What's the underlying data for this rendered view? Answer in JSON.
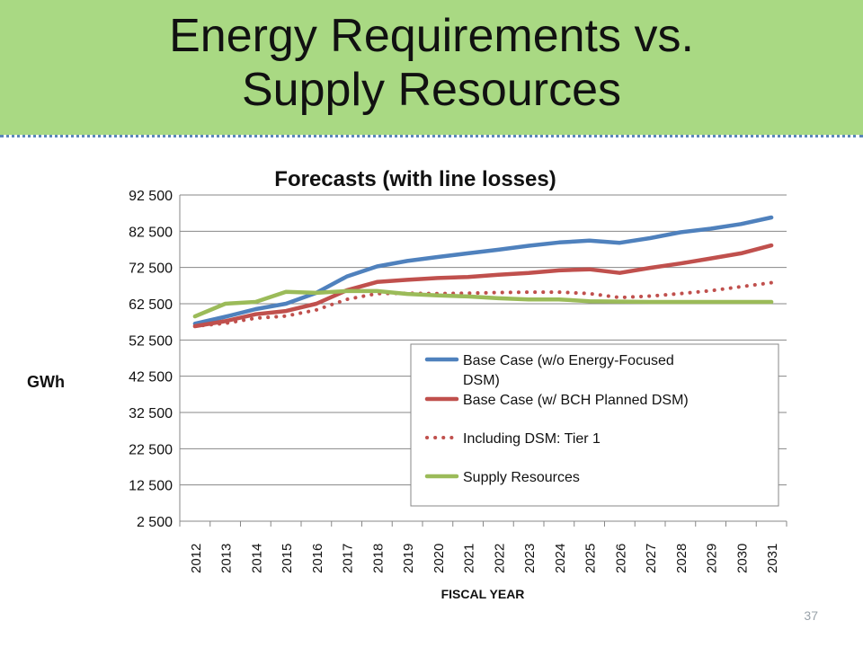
{
  "slide": {
    "title_line1": "Energy Requirements vs.",
    "title_line2": "Supply Resources",
    "page_number": "37",
    "band_color": "#a9d983"
  },
  "chart_data": {
    "type": "line",
    "title": "Forecasts (with line losses)",
    "xlabel": "FISCAL YEAR",
    "ylabel": "GWh",
    "x": [
      "2012",
      "2013",
      "2014",
      "2015",
      "2016",
      "2017",
      "2018",
      "2019",
      "2020",
      "2021",
      "2022",
      "2023",
      "2024",
      "2025",
      "2026",
      "2027",
      "2028",
      "2029",
      "2030",
      "2031"
    ],
    "ylim": [
      2500,
      92500
    ],
    "yticks": [
      2500,
      12500,
      22500,
      32500,
      42500,
      52500,
      62500,
      72500,
      82500,
      92500
    ],
    "ytick_labels": [
      "2 500",
      "12 500",
      "22 500",
      "32 500",
      "42 500",
      "52 500",
      "62 500",
      "72 500",
      "82 500",
      "92 500"
    ],
    "grid": "horizontal",
    "legend_position": "lower-right",
    "series": [
      {
        "name": "Base Case (w/o Energy-Focused DSM)",
        "color": "#4f81bd",
        "style": "solid",
        "values": [
          57000,
          58900,
          61000,
          62500,
          65500,
          70000,
          72800,
          74300,
          75400,
          76400,
          77400,
          78500,
          79400,
          79900,
          79300,
          80600,
          82200,
          83200,
          84500,
          86300
        ]
      },
      {
        "name": "Base Case (w/ BCH Planned DSM)",
        "color": "#c0504d",
        "style": "solid",
        "values": [
          56300,
          57700,
          59600,
          60500,
          62500,
          66200,
          68500,
          69100,
          69600,
          69900,
          70500,
          71000,
          71700,
          72000,
          71000,
          72400,
          73600,
          75000,
          76400,
          78600
        ]
      },
      {
        "name": "Including DSM: Tier 1",
        "color": "#c0504d",
        "style": "dotted",
        "values": [
          56300,
          57100,
          58500,
          59100,
          60800,
          63700,
          65300,
          65400,
          65300,
          65400,
          65600,
          65700,
          65700,
          65300,
          64200,
          64600,
          65300,
          66100,
          67200,
          68300
        ]
      },
      {
        "name": "Supply Resources",
        "color": "#9bbb59",
        "style": "solid",
        "values": [
          59000,
          62500,
          63000,
          65800,
          65500,
          66000,
          66000,
          65200,
          64800,
          64500,
          64000,
          63700,
          63700,
          63200,
          63100,
          63000,
          63000,
          63000,
          63000,
          63000
        ]
      }
    ]
  }
}
